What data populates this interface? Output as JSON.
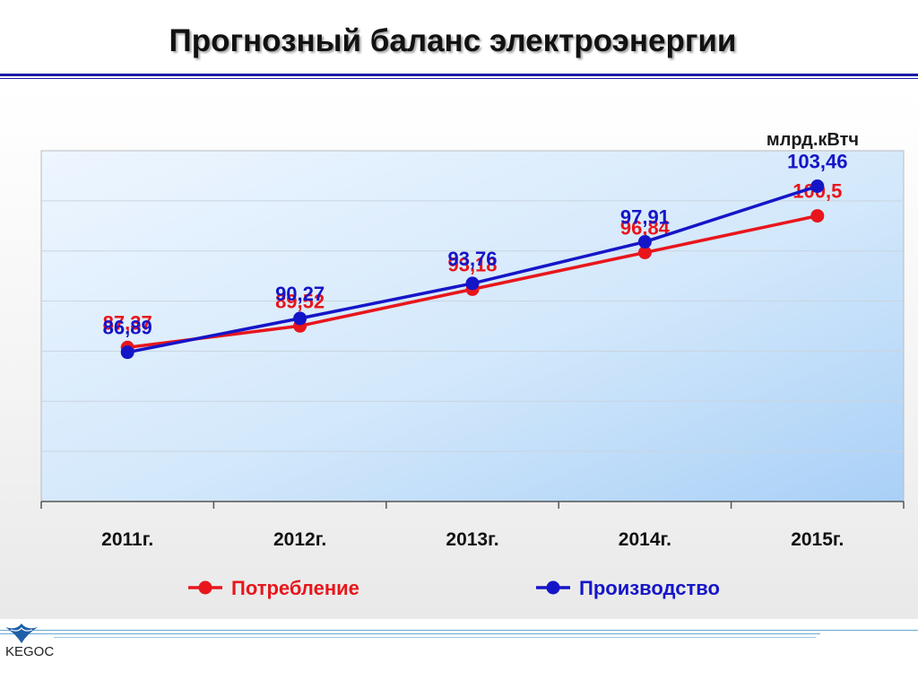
{
  "title": "Прогнозный баланс электроэнергии",
  "logo": "KEGOC",
  "chart_data": {
    "type": "line",
    "title": "Прогнозный баланс электроэнергии",
    "unit_label": "млрд.кВтч",
    "categories": [
      "2011г.",
      "2012г.",
      "2013г.",
      "2014г.",
      "2015г."
    ],
    "series": [
      {
        "name": "Потребление",
        "color": "#e8161c",
        "values": [
          87.37,
          89.52,
          93.18,
          96.84,
          100.5
        ],
        "labels": [
          "87,37",
          "89,52",
          "93,18",
          "96,84",
          "100,5"
        ]
      },
      {
        "name": "Производство",
        "color": "#1515c8",
        "values": [
          86.89,
          90.27,
          93.76,
          97.91,
          103.46
        ],
        "labels": [
          "86,89",
          "90,27",
          "93,76",
          "97,91",
          "103,46"
        ]
      }
    ],
    "grid": true,
    "legend_position": "bottom"
  }
}
